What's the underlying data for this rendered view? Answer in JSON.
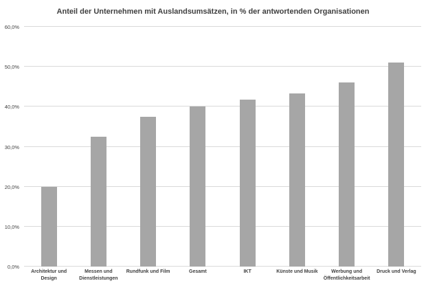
{
  "chart_data": {
    "type": "bar",
    "title": "Anteil der Unternehmen mit Auslandsumsätzen, in % der antwortenden Organisationen",
    "categories": [
      "Architektur und Design",
      "Messen und Dienstleistungen",
      "Rundfunk und Film",
      "Gesamt",
      "IKT",
      "Künste und Musik",
      "Werbung und Öffentlichkeitsarbeit",
      "Druck und Verlag"
    ],
    "values": [
      20.0,
      32.5,
      37.5,
      40.0,
      41.7,
      43.3,
      46.0,
      51.0
    ],
    "xlabel": "",
    "ylabel": "",
    "ylim": [
      0,
      60
    ],
    "y_tick_values": [
      0,
      10,
      20,
      30,
      40,
      50,
      60
    ],
    "y_tick_labels": [
      "0,0%",
      "10,0%",
      "20,0%",
      "30,0%",
      "40,0%",
      "50,0%",
      "60,0%"
    ],
    "grid": true,
    "legend": false,
    "colors": {
      "bar": "#a6a6a6",
      "gridline": "#d9d9d9",
      "text": "#404040",
      "background": "#ffffff"
    }
  }
}
